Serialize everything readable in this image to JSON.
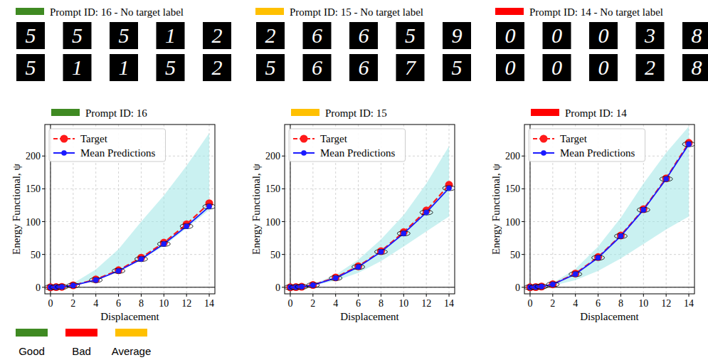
{
  "chart_data": [
    {
      "type": "line",
      "header": "Prompt ID: 16 - No target label",
      "title": "Prompt ID: 16",
      "color": "#3f8a22",
      "digits": [
        [
          "5",
          "5",
          "5",
          "1",
          "2"
        ],
        [
          "5",
          "1",
          "1",
          "5",
          "2"
        ]
      ],
      "x_label": "Displacement",
      "y_label": "Energy Functional, ψ",
      "x": [
        0,
        0.5,
        1,
        2,
        4,
        6,
        8,
        10,
        12,
        14
      ],
      "xlim": [
        -0.5,
        14.5
      ],
      "ylim": [
        -10,
        248
      ],
      "xticks": [
        0,
        2,
        4,
        6,
        8,
        10,
        12,
        14
      ],
      "yticks": [
        0,
        50,
        100,
        150,
        200
      ],
      "grid": true,
      "legend": "upper left",
      "series": [
        {
          "name": "Target",
          "color": "#ff1a1a",
          "marker": "circle",
          "line_style": "dashed",
          "values": [
            0,
            0.2,
            0.7,
            3,
            12,
            26,
            45,
            68,
            96,
            128
          ]
        },
        {
          "name": "Mean Predictions",
          "color": "#1a1aff",
          "marker": "circle",
          "line_style": "solid",
          "values": [
            0,
            0.2,
            0.6,
            2.8,
            11,
            25,
            43,
            66,
            93,
            123
          ],
          "lower": [
            0,
            0.2,
            0.6,
            2.6,
            10,
            24,
            42,
            63,
            90,
            118
          ],
          "upper": [
            0,
            0.5,
            1.5,
            6,
            27,
            58,
            100,
            140,
            185,
            235
          ]
        }
      ]
    },
    {
      "type": "line",
      "header": "Prompt ID: 15 - No target label",
      "title": "Prompt ID: 15",
      "color": "#ffc000",
      "digits": [
        [
          "2",
          "6",
          "6",
          "5",
          "9"
        ],
        [
          "5",
          "6",
          "6",
          "7",
          "5"
        ]
      ],
      "x_label": "Displacement",
      "y_label": "Energy Functional, ψ",
      "x": [
        0,
        0.5,
        1,
        2,
        4,
        6,
        8,
        10,
        12,
        14
      ],
      "xlim": [
        -0.5,
        14.5
      ],
      "ylim": [
        -10,
        248
      ],
      "xticks": [
        0,
        2,
        4,
        6,
        8,
        10,
        12,
        14
      ],
      "yticks": [
        0,
        50,
        100,
        150,
        200
      ],
      "grid": true,
      "legend": "upper left",
      "series": [
        {
          "name": "Target",
          "color": "#ff1a1a",
          "marker": "circle",
          "line_style": "dashed",
          "values": [
            0,
            0.2,
            0.8,
            3.5,
            15,
            32,
            55,
            84,
            117,
            156
          ]
        },
        {
          "name": "Mean Predictions",
          "color": "#1a1aff",
          "marker": "circle",
          "line_style": "solid",
          "values": [
            0,
            0.2,
            0.8,
            3.3,
            14,
            31,
            54,
            82,
            114,
            151
          ],
          "lower": [
            0,
            0.1,
            0.5,
            2.5,
            10,
            22,
            40,
            62,
            85,
            108
          ],
          "upper": [
            0,
            0.3,
            1.2,
            4.5,
            19,
            42,
            73,
            110,
            158,
            215
          ]
        }
      ]
    },
    {
      "type": "line",
      "header": "Prompt ID: 14 - No target label",
      "title": "Prompt ID: 14",
      "color": "#ff0000",
      "digits": [
        [
          "0",
          "0",
          "0",
          "3",
          "8"
        ],
        [
          "0",
          "0",
          "0",
          "2",
          "8"
        ]
      ],
      "x_label": "Displacement",
      "y_label": "Energy Functional, ψ",
      "x": [
        0,
        0.5,
        1,
        2,
        4,
        6,
        8,
        10,
        12,
        14
      ],
      "xlim": [
        -0.5,
        14.5
      ],
      "ylim": [
        -10,
        248
      ],
      "xticks": [
        0,
        2,
        4,
        6,
        8,
        10,
        12,
        14
      ],
      "yticks": [
        0,
        50,
        100,
        150,
        200
      ],
      "grid": true,
      "legend": "upper left",
      "series": [
        {
          "name": "Target",
          "color": "#ff1a1a",
          "marker": "circle",
          "line_style": "dashed",
          "values": [
            0,
            0.3,
            1.1,
            4.5,
            21,
            46,
            79,
            119,
            166,
            220
          ]
        },
        {
          "name": "Mean Predictions",
          "color": "#1a1aff",
          "marker": "circle",
          "line_style": "solid",
          "values": [
            0,
            0.3,
            1.1,
            4.4,
            20,
            45,
            78,
            118,
            165,
            218
          ],
          "lower": [
            0,
            0.2,
            0.6,
            2.5,
            11,
            25,
            44,
            66,
            88,
            108
          ],
          "upper": [
            0,
            0.4,
            1.6,
            6.5,
            28,
            62,
            106,
            158,
            205,
            245
          ]
        }
      ]
    }
  ],
  "rating_legend": [
    {
      "label": "Good",
      "color": "#3f8a22"
    },
    {
      "label": "Bad",
      "color": "#ff0000"
    },
    {
      "label": "Average",
      "color": "#ffc000"
    }
  ]
}
